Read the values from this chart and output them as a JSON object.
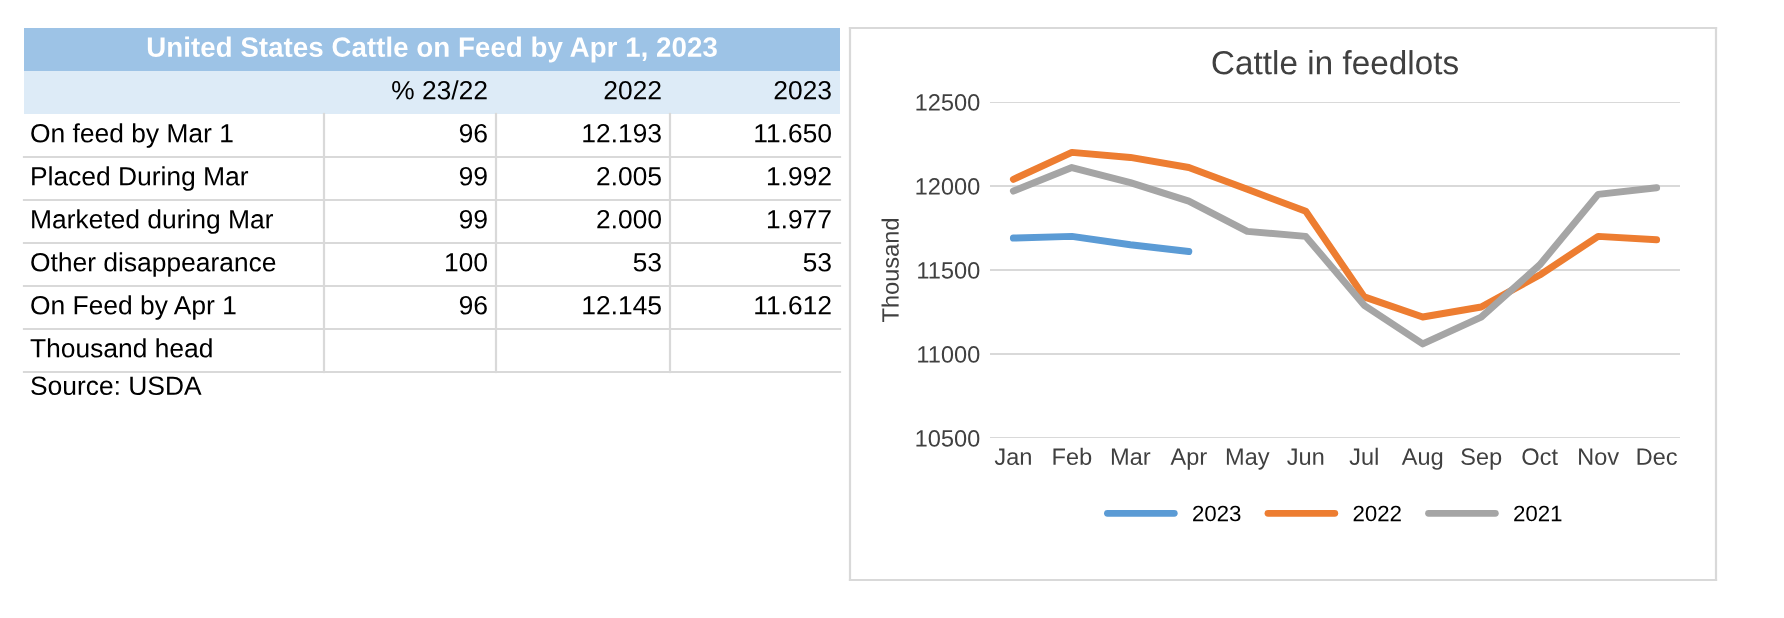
{
  "chart_data": [
    {
      "type": "other",
      "title": "United States Cattle on Feed by Apr 1, 2023",
      "categories": [
        "% 23/22",
        "2022",
        "2023"
      ],
      "y_categories": [
        "On feed by Mar 1",
        "Placed During Mar",
        "Marketed during Mar",
        "Other disappearance",
        "On Feed by Apr 1",
        "Thousand head"
      ],
      "cell_labels": [
        [
          "96",
          "12.193",
          "11.650"
        ],
        [
          "99",
          "2.005",
          "1.992"
        ],
        [
          "99",
          "2.000",
          "1.977"
        ],
        [
          "100",
          "53",
          "53"
        ],
        [
          "96",
          "12.145",
          "11.612"
        ],
        [
          null,
          null,
          null
        ]
      ],
      "annotations": [
        "Source: USDA"
      ]
    },
    {
      "type": "line",
      "title": "Cattle in feedlots",
      "ylabel": "Thousand",
      "categories": [
        "Jan",
        "Feb",
        "Mar",
        "Apr",
        "May",
        "Jun",
        "Jul",
        "Aug",
        "Sep",
        "Oct",
        "Nov",
        "Dec"
      ],
      "series": [
        {
          "name": "2023",
          "color": "#5b9bd5",
          "values": [
            11690,
            11700,
            11650,
            11610,
            null,
            null,
            null,
            null,
            null,
            null,
            null,
            null
          ]
        },
        {
          "name": "2022",
          "color": "#ed7d31",
          "values": [
            12040,
            12200,
            12170,
            12110,
            11980,
            11850,
            11340,
            11220,
            11280,
            11470,
            11700,
            11680
          ]
        },
        {
          "name": "2021",
          "color": "#a5a5a5",
          "values": [
            11970,
            12110,
            12020,
            11910,
            11730,
            11700,
            11290,
            11060,
            11220,
            11530,
            11950,
            11990
          ]
        }
      ],
      "ylim": [
        10500,
        12500
      ],
      "yticks": [
        10500,
        11000,
        11500,
        12000,
        12500
      ],
      "grid": "y",
      "legend": "bottom",
      "line_style": "solid",
      "marker": "none"
    }
  ]
}
